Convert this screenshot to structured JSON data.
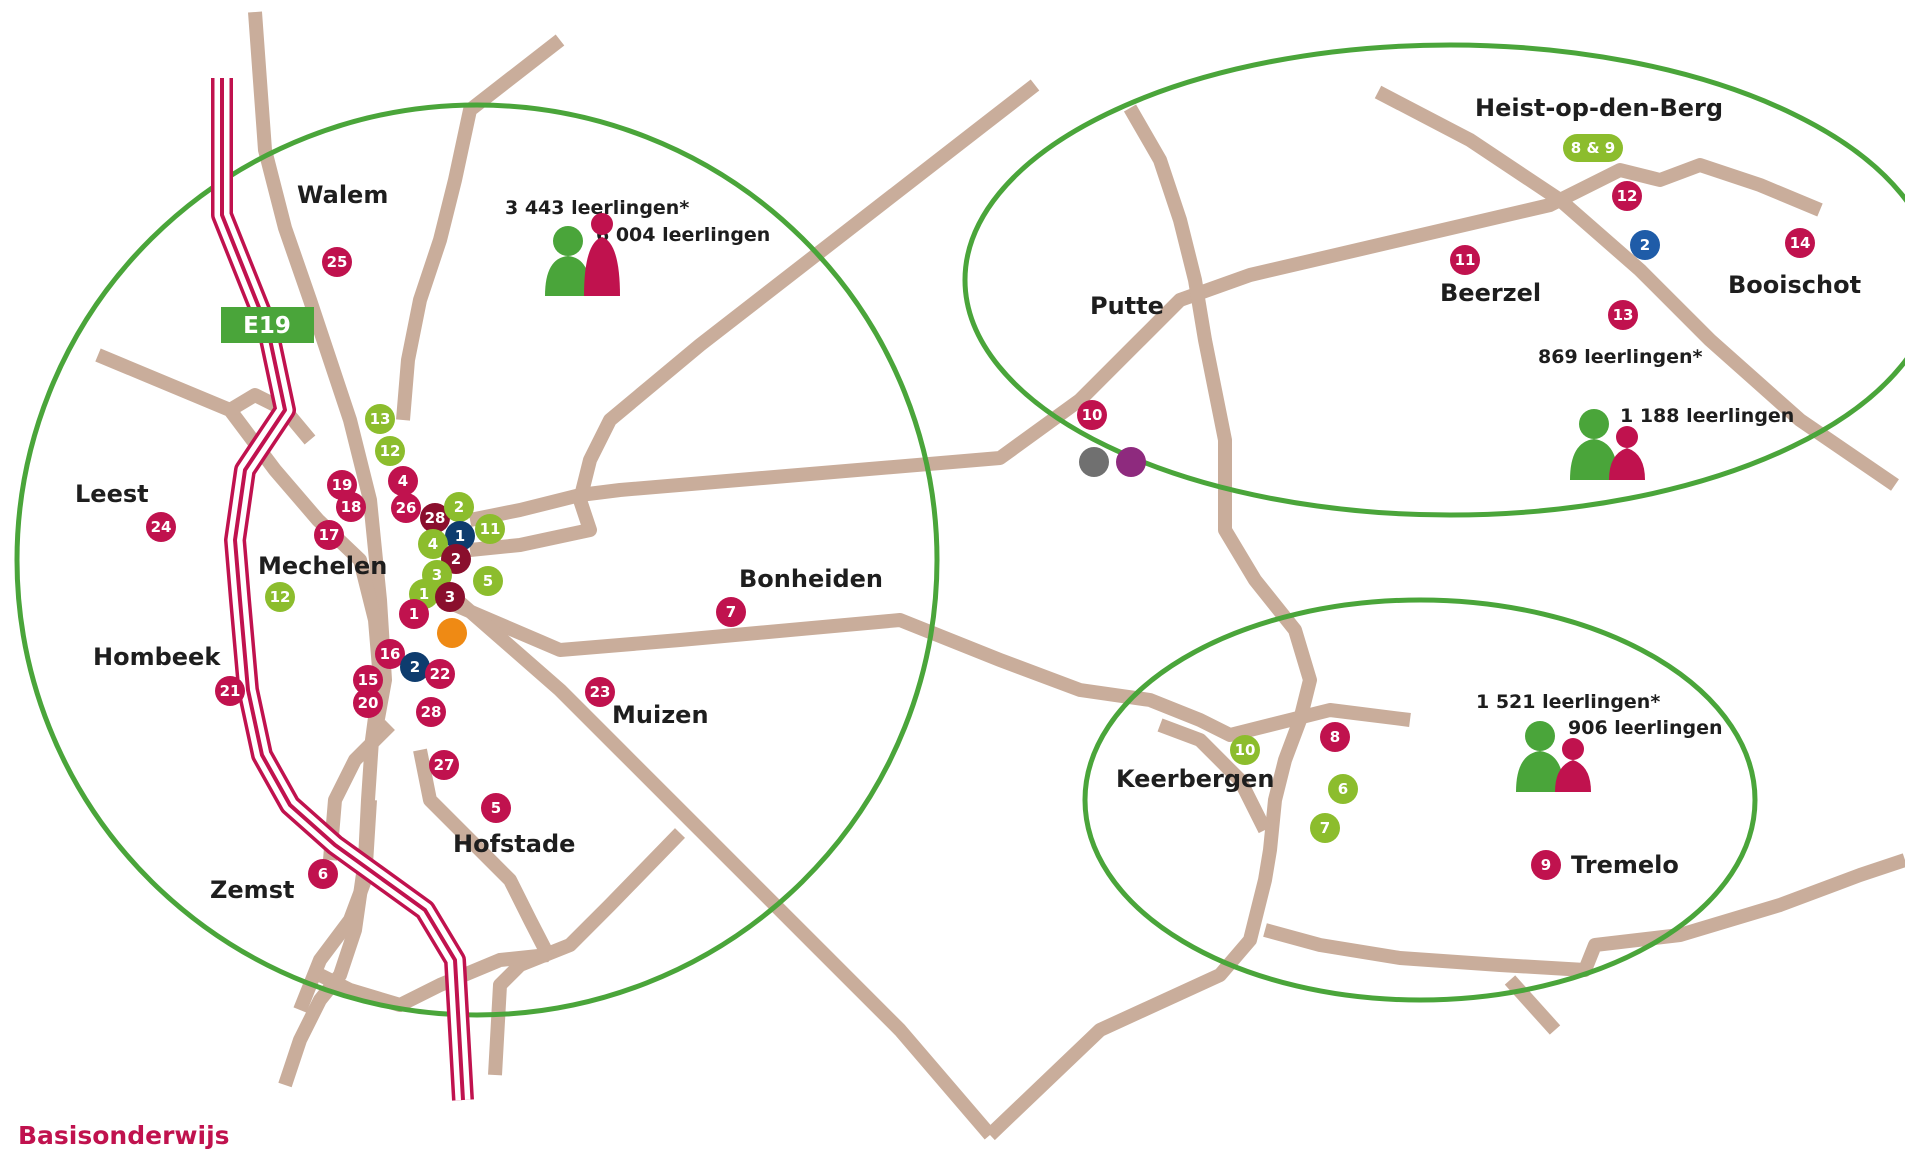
{
  "colors": {
    "secondary": "#c0124e",
    "primary_green": "#4aa53a",
    "basic_green": "#8cbd2d",
    "navy": "#0e3c6e",
    "dark_red": "#8a0f2d",
    "blue": "#1f5ca8",
    "orange": "#ef8a14",
    "grey": "#707070",
    "purple": "#8e2a7e",
    "road": "#c9ad9b"
  },
  "highway": {
    "label": "E19"
  },
  "places": {
    "walem": "Walem",
    "leest": "Leest",
    "mechelen": "Mechelen",
    "hombeek": "Hombeek",
    "zemst": "Zemst",
    "hofstade": "Hofstade",
    "muizen": "Muizen",
    "bonheiden": "Bonheiden",
    "putte": "Putte",
    "heist": "Heist-op-den-Berg",
    "beerzel": "Beerzel",
    "booischot": "Booischot",
    "keerbergen": "Keerbergen",
    "tremelo": "Tremelo"
  },
  "stats": {
    "mechelen": {
      "secondary": "3 443 leerlingen*",
      "basic": "6 004 leerlingen"
    },
    "heist": {
      "secondary": "869 leerlingen*",
      "basic": "1 188 leerlingen"
    },
    "keerbergen": {
      "secondary": "1 521 leerlingen*",
      "basic": "906 leerlingen"
    }
  },
  "footer": {
    "label": "Basisonderwijs"
  },
  "markers": [
    {
      "name": "marker-25",
      "label": "25",
      "type": "basic"
    },
    {
      "name": "marker-24",
      "label": "24",
      "type": "basic"
    },
    {
      "name": "marker-13-green",
      "label": "13",
      "type": "green"
    },
    {
      "name": "marker-12-green",
      "label": "12",
      "type": "green"
    },
    {
      "name": "marker-19",
      "label": "19",
      "type": "basic"
    },
    {
      "name": "marker-18",
      "label": "18",
      "type": "basic"
    },
    {
      "name": "marker-17",
      "label": "17",
      "type": "basic"
    },
    {
      "name": "marker-4-red",
      "label": "4",
      "type": "basic"
    },
    {
      "name": "marker-26",
      "label": "26",
      "type": "basic"
    },
    {
      "name": "marker-28-top",
      "label": "28",
      "type": "dark"
    },
    {
      "name": "marker-2-green",
      "label": "2",
      "type": "green"
    },
    {
      "name": "marker-1-navy",
      "label": "1",
      "type": "navy"
    },
    {
      "name": "marker-11-green",
      "label": "11",
      "type": "green"
    },
    {
      "name": "marker-4-green",
      "label": "4",
      "type": "green"
    },
    {
      "name": "marker-2-dark",
      "label": "2",
      "type": "dark"
    },
    {
      "name": "marker-3-green",
      "label": "3",
      "type": "green"
    },
    {
      "name": "marker-5-green",
      "label": "5",
      "type": "green"
    },
    {
      "name": "marker-1-green",
      "label": "1",
      "type": "green"
    },
    {
      "name": "marker-3-dark",
      "label": "3",
      "type": "dark"
    },
    {
      "name": "marker-1-red",
      "label": "1",
      "type": "basic"
    },
    {
      "name": "marker-orange",
      "label": "",
      "type": "orange"
    },
    {
      "name": "marker-12-mechelen-green",
      "label": "12",
      "type": "green"
    },
    {
      "name": "marker-16",
      "label": "16",
      "type": "basic"
    },
    {
      "name": "marker-2-navy",
      "label": "2",
      "type": "navy"
    },
    {
      "name": "marker-22",
      "label": "22",
      "type": "basic"
    },
    {
      "name": "marker-15",
      "label": "15",
      "type": "basic"
    },
    {
      "name": "marker-20",
      "label": "20",
      "type": "basic"
    },
    {
      "name": "marker-28-bottom",
      "label": "28",
      "type": "basic"
    },
    {
      "name": "marker-27",
      "label": "27",
      "type": "basic"
    },
    {
      "name": "marker-21",
      "label": "21",
      "type": "basic"
    },
    {
      "name": "marker-23",
      "label": "23",
      "type": "basic"
    },
    {
      "name": "marker-7-bonheiden",
      "label": "7",
      "type": "basic"
    },
    {
      "name": "marker-5-hofstade",
      "label": "5",
      "type": "basic"
    },
    {
      "name": "marker-6-zemst",
      "label": "6",
      "type": "basic"
    },
    {
      "name": "marker-10-putte",
      "label": "10",
      "type": "basic"
    },
    {
      "name": "marker-grey",
      "label": "",
      "type": "grey"
    },
    {
      "name": "marker-purple",
      "label": "",
      "type": "purple"
    },
    {
      "name": "marker-12-heist",
      "label": "12",
      "type": "basic"
    },
    {
      "name": "marker-2-blue",
      "label": "2",
      "type": "blue"
    },
    {
      "name": "marker-11-beerzel",
      "label": "11",
      "type": "basic"
    },
    {
      "name": "marker-14",
      "label": "14",
      "type": "basic"
    },
    {
      "name": "marker-13-heist",
      "label": "13",
      "type": "basic"
    },
    {
      "name": "marker-8-keerbergen",
      "label": "8",
      "type": "basic"
    },
    {
      "name": "marker-10-keerbergen-green",
      "label": "10",
      "type": "green"
    },
    {
      "name": "marker-6-keerbergen-green",
      "label": "6",
      "type": "green"
    },
    {
      "name": "marker-7-keerbergen-green",
      "label": "7",
      "type": "green"
    },
    {
      "name": "marker-9-tremelo",
      "label": "9",
      "type": "basic"
    }
  ],
  "pill": {
    "label": "8 & 9"
  }
}
